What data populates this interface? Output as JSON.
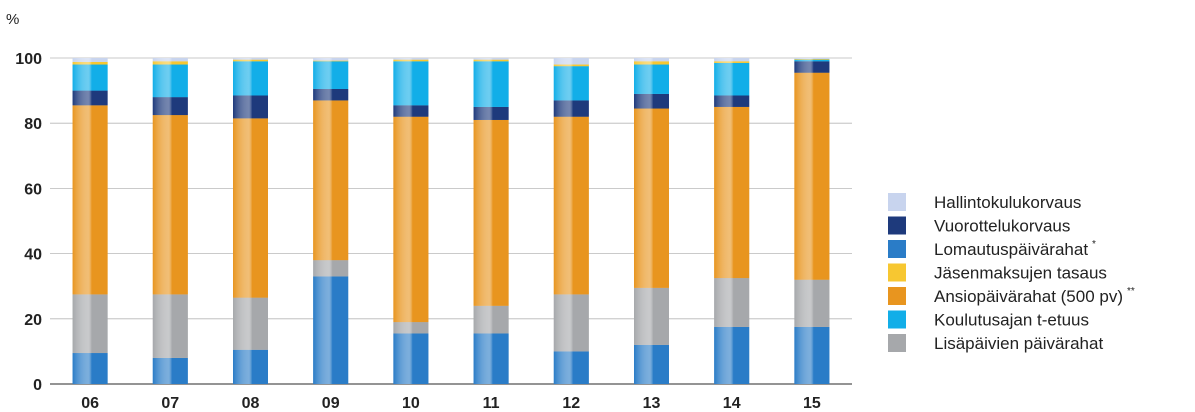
{
  "chart_data": {
    "type": "bar",
    "stacked": true,
    "unit_label": "%",
    "categories": [
      "06",
      "07",
      "08",
      "09",
      "10",
      "11",
      "12",
      "13",
      "14",
      "15"
    ],
    "ylim": [
      0,
      100
    ],
    "yticks": [
      0,
      20,
      40,
      60,
      80,
      100
    ],
    "grid": true,
    "legend_position": "right",
    "series": [
      {
        "name": "Lomautuspäivärahat",
        "marker": "*",
        "color": "#2a7cc7",
        "values": [
          9.5,
          8,
          10.5,
          33,
          15.5,
          15.5,
          10,
          12,
          17.5,
          17.5
        ]
      },
      {
        "name": "Lisäpäivien päivärahat",
        "color": "#a6a8ab",
        "values": [
          18,
          19.5,
          16,
          5,
          3.5,
          8.5,
          17.5,
          17.5,
          15,
          14.5
        ]
      },
      {
        "name": "Ansiopäivärahat (500 pv)",
        "marker": "**",
        "color": "#e8951f",
        "values": [
          58,
          55,
          55,
          49,
          63,
          57,
          54.5,
          55,
          52.5,
          63.5
        ]
      },
      {
        "name": "Vuorottelukorvaus",
        "color": "#1e3a7c",
        "values": [
          4.5,
          5.5,
          7,
          3.5,
          3.5,
          4,
          5,
          4.5,
          3.5,
          3.5
        ]
      },
      {
        "name": "Koulutusajan t-etuus",
        "color": "#12aee8",
        "values": [
          8,
          10,
          10.5,
          8.5,
          13.5,
          14,
          10.5,
          9,
          10,
          0.5
        ]
      },
      {
        "name": "Jäsenmaksujen tasaus",
        "color": "#f7c731",
        "values": [
          0.8,
          1,
          0.5,
          0.2,
          0.5,
          0.5,
          0.5,
          1,
          0.5,
          0.2
        ]
      },
      {
        "name": "Hallintokulukorvaus",
        "color": "#c8d4ee",
        "values": [
          1.2,
          1,
          0.5,
          0.8,
          0.5,
          0.5,
          2,
          1,
          1,
          0.3
        ]
      }
    ],
    "legend_order": [
      "Hallintokulukorvaus",
      "Vuorottelukorvaus",
      "Lomautuspäivärahat",
      "Jäsenmaksujen tasaus",
      "Ansiopäivärahat (500 pv)",
      "Koulutusajan t-etuus",
      "Lisäpäivien päivärahat"
    ]
  }
}
